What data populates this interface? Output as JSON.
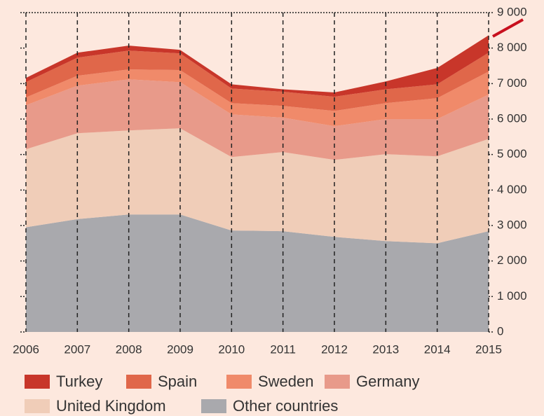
{
  "chart_data": {
    "type": "stacked_area",
    "x": [
      2006,
      2007,
      2008,
      2009,
      2010,
      2011,
      2012,
      2013,
      2014,
      2015
    ],
    "series": [
      {
        "name": "Other countries",
        "color": "#a9a9ad",
        "values": [
          2950,
          3180,
          3310,
          3310,
          2860,
          2840,
          2680,
          2560,
          2500,
          2840
        ]
      },
      {
        "name": "United Kingdom",
        "color": "#f0cdb8",
        "values": [
          2200,
          2420,
          2370,
          2430,
          2070,
          2230,
          2170,
          2450,
          2450,
          2600
        ]
      },
      {
        "name": "Germany",
        "color": "#e89a8a",
        "values": [
          1240,
          1340,
          1440,
          1300,
          1200,
          970,
          950,
          990,
          1050,
          1250
        ]
      },
      {
        "name": "Sweden",
        "color": "#f08a6a",
        "values": [
          220,
          280,
          280,
          340,
          320,
          330,
          430,
          450,
          590,
          650
        ]
      },
      {
        "name": "Spain",
        "color": "#e0674a",
        "values": [
          430,
          510,
          530,
          470,
          410,
          400,
          400,
          390,
          390,
          530
        ]
      },
      {
        "name": "Turkey",
        "color": "#c8362a",
        "values": [
          120,
          140,
          140,
          100,
          120,
          70,
          120,
          220,
          460,
          490
        ]
      }
    ],
    "ylim": [
      0,
      9000
    ],
    "yticks": [
      0,
      {
        "value": 1000,
        "label": "1 000"
      },
      {
        "value": 2000,
        "label": "2 000"
      },
      {
        "value": 3000,
        "label": "3 000"
      },
      {
        "value": 4000,
        "label": "4 000"
      },
      {
        "value": 5000,
        "label": "5 000"
      },
      {
        "value": 6000,
        "label": "6 000"
      },
      {
        "value": 7000,
        "label": "7 000"
      },
      {
        "value": 8000,
        "label": "8 000"
      },
      {
        "value": 9000,
        "label": "9 000"
      }
    ]
  }
}
